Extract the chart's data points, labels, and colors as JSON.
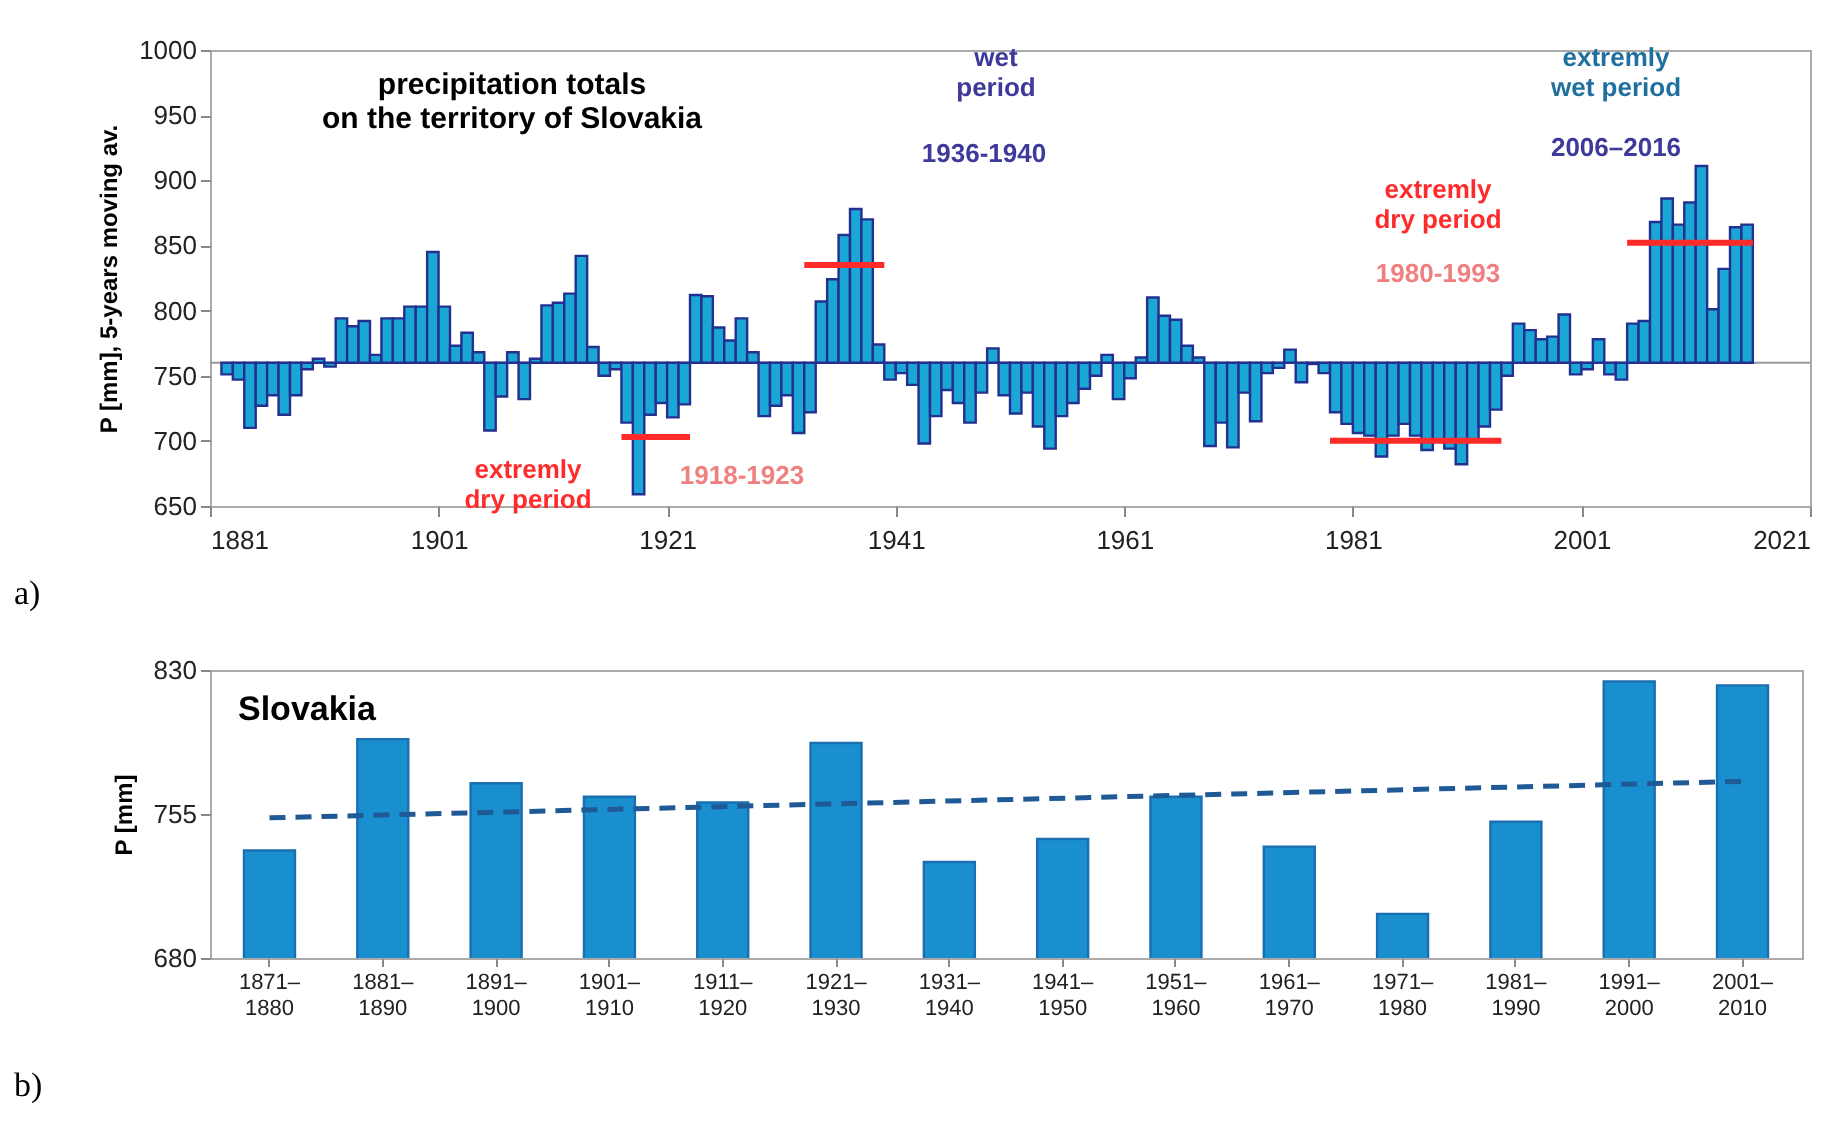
{
  "chart_data": [
    {
      "type": "bar",
      "title": "precipitation totals\non the territory of Slovakia",
      "ylabel": "P [mm], 5-years moving av.",
      "xlim": [
        1881,
        2021
      ],
      "xticks": [
        1881,
        1901,
        1921,
        1941,
        1961,
        1981,
        2001,
        2021
      ],
      "ylim": [
        650,
        1000
      ],
      "yticks": [
        650,
        700,
        750,
        800,
        850,
        900,
        950,
        1000
      ],
      "grid": false,
      "ref_lines": [
        {
          "axis": "y",
          "value": 760,
          "color": "#999999"
        }
      ],
      "series": [
        {
          "color": "#1aa7d6",
          "base": [
            760,
            760,
            760,
            760,
            760,
            760,
            760,
            760,
            760,
            760,
            760,
            760,
            760,
            760,
            760,
            760,
            760,
            760,
            760,
            760,
            760,
            760,
            760,
            760,
            760,
            760,
            760,
            760,
            760,
            760,
            760,
            760,
            760,
            760,
            760,
            760,
            760,
            760,
            760,
            760,
            760,
            760,
            760,
            760,
            760,
            760,
            760,
            760,
            760,
            760,
            760,
            760,
            760,
            760,
            760,
            760,
            760,
            760,
            760,
            760,
            760,
            760,
            760,
            760,
            760,
            760,
            760,
            760,
            760,
            760,
            760,
            760,
            760,
            760,
            760,
            760,
            760,
            760,
            760,
            760,
            760,
            760,
            760,
            760,
            760,
            760,
            760,
            760,
            760,
            760,
            760,
            760,
            760,
            760,
            760,
            760,
            760,
            760,
            760,
            760,
            760,
            760,
            760,
            760,
            760,
            760,
            760,
            760,
            760,
            760,
            760,
            760,
            760,
            760,
            760,
            760,
            760,
            760,
            760,
            760,
            760,
            760,
            760,
            760,
            760,
            760,
            760,
            760,
            760,
            760,
            760,
            760,
            760,
            760
          ],
          "x": [
            1882,
            1883,
            1884,
            1885,
            1886,
            1887,
            1888,
            1889,
            1890,
            1891,
            1892,
            1893,
            1894,
            1895,
            1896,
            1897,
            1898,
            1899,
            1900,
            1901,
            1902,
            1903,
            1904,
            1905,
            1906,
            1907,
            1908,
            1909,
            1910,
            1911,
            1912,
            1913,
            1914,
            1915,
            1916,
            1917,
            1918,
            1919,
            1920,
            1921,
            1922,
            1923,
            1924,
            1925,
            1926,
            1927,
            1928,
            1929,
            1930,
            1931,
            1932,
            1933,
            1934,
            1935,
            1936,
            1937,
            1938,
            1939,
            1940,
            1941,
            1942,
            1943,
            1944,
            1945,
            1946,
            1947,
            1948,
            1949,
            1950,
            1951,
            1952,
            1953,
            1954,
            1955,
            1956,
            1957,
            1958,
            1959,
            1960,
            1961,
            1962,
            1963,
            1964,
            1965,
            1966,
            1967,
            1968,
            1969,
            1970,
            1971,
            1972,
            1973,
            1974,
            1975,
            1976,
            1977,
            1978,
            1979,
            1980,
            1981,
            1982,
            1983,
            1984,
            1985,
            1986,
            1987,
            1988,
            1989,
            1990,
            1991,
            1992,
            1993,
            1994,
            1995,
            1996,
            1997,
            1998,
            1999,
            2000,
            2001,
            2002,
            2003,
            2004,
            2005,
            2006,
            2007,
            2008,
            2009,
            2010,
            2011,
            2012,
            2013,
            2014,
            2015
          ],
          "values": [
            -9,
            -13,
            -50,
            -33,
            -25,
            -40,
            -25,
            -5,
            3,
            -3,
            34,
            28,
            32,
            6,
            34,
            34,
            43,
            43,
            85,
            43,
            13,
            23,
            8,
            -52,
            -26,
            8,
            -28,
            3,
            44,
            46,
            53,
            82,
            12,
            -10,
            -5,
            -46,
            -101,
            -40,
            -31,
            -42,
            -32,
            52,
            51,
            27,
            17,
            34,
            8,
            -41,
            -33,
            -25,
            -54,
            -38,
            47,
            64,
            98,
            118,
            110,
            14,
            -13,
            -8,
            -17,
            -62,
            -41,
            -21,
            -31,
            -46,
            -23,
            11,
            -25,
            -39,
            -23,
            -49,
            -66,
            -41,
            -31,
            -20,
            -10,
            6,
            -28,
            -12,
            4,
            50,
            36,
            33,
            13,
            4,
            -64,
            -46,
            -65,
            -23,
            -45,
            -8,
            -4,
            10,
            -15,
            -1,
            -8,
            -38,
            -47,
            -54,
            -56,
            -72,
            -56,
            -47,
            -56,
            -67,
            -59,
            -66,
            -78,
            -59,
            -49,
            -36,
            -10,
            30,
            25,
            18,
            20,
            37,
            -9,
            -5,
            18,
            -9,
            -13,
            30,
            32,
            108,
            126,
            106,
            123,
            151,
            41,
            72,
            104,
            106
          ]
        },
        {
          "type": "line",
          "color": "#ff2a2a",
          "x": [
            1917,
            1923
          ],
          "values": [
            703,
            703
          ]
        },
        {
          "type": "line",
          "color": "#ff2a2a",
          "x": [
            1933,
            1940
          ],
          "values": [
            835,
            835
          ]
        },
        {
          "type": "line",
          "color": "#ff2a2a",
          "x": [
            1979,
            1994
          ],
          "values": [
            700,
            700
          ]
        },
        {
          "type": "line",
          "color": "#ff2a2a",
          "x": [
            2005,
            2016
          ],
          "values": [
            852,
            852
          ]
        }
      ],
      "annotations": [
        "wet\nperiod",
        "1936-1940",
        "extremly\ndry period",
        "1918-1923",
        "extremly\ndry period",
        "1980-1993",
        "extremly\nwet period",
        "2006–2016",
        "a)"
      ]
    },
    {
      "type": "bar",
      "title": "Slovakia",
      "ylabel": "P [mm]",
      "categories": [
        "1871–1880",
        "1881–1890",
        "1891–1900",
        "1901–1910",
        "1911–1920",
        "1921–1930",
        "1931–1940",
        "1941–1950",
        "1951–1960",
        "1961–1970",
        "1971–1980",
        "1981–1990",
        "1991–2000",
        "2001–2010"
      ],
      "ylim": [
        680,
        830
      ],
      "yticks": [
        680,
        755,
        830
      ],
      "grid": false,
      "series": [
        {
          "color": "#1a8fd0",
          "values": [
            736,
            794,
            771,
            764,
            761,
            792,
            730,
            742,
            764,
            738,
            703,
            751,
            824,
            822
          ]
        },
        {
          "type": "line",
          "color": "#1f5a96",
          "line_style": "dashed",
          "x": [
            "1871–1880",
            "2001–2010"
          ],
          "values": [
            753,
            772
          ]
        }
      ],
      "annotations": [
        "b)"
      ]
    }
  ]
}
